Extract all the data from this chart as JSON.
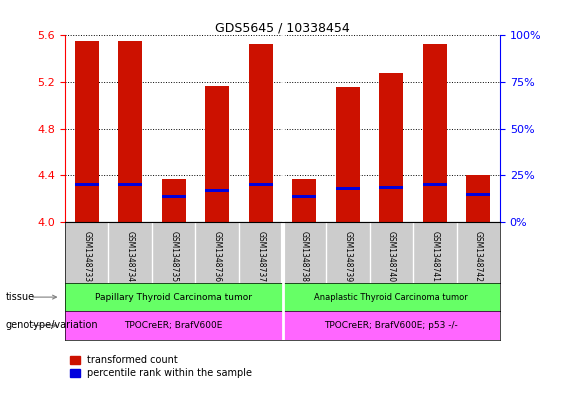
{
  "title": "GDS5645 / 10338454",
  "samples": [
    "GSM1348733",
    "GSM1348734",
    "GSM1348735",
    "GSM1348736",
    "GSM1348737",
    "GSM1348738",
    "GSM1348739",
    "GSM1348740",
    "GSM1348741",
    "GSM1348742"
  ],
  "bar_values": [
    5.55,
    5.55,
    4.37,
    5.17,
    5.53,
    4.37,
    5.16,
    5.28,
    5.53,
    4.4
  ],
  "blue_values": [
    4.32,
    4.32,
    4.22,
    4.27,
    4.32,
    4.22,
    4.29,
    4.3,
    4.32,
    4.24
  ],
  "ylim": [
    4.0,
    5.6
  ],
  "yticks_left": [
    4.0,
    4.4,
    4.8,
    5.2,
    5.6
  ],
  "yticks_right": [
    0,
    25,
    50,
    75,
    100
  ],
  "ytick_labels_right": [
    "0%",
    "25%",
    "50%",
    "75%",
    "100%"
  ],
  "bar_color": "#CC1100",
  "blue_color": "#0000DD",
  "bar_width": 0.55,
  "tissue_labels": [
    "Papillary Thyroid Carcinoma tumor",
    "Anaplastic Thyroid Carcinoma tumor"
  ],
  "tissue_split": 5,
  "genotype_labels": [
    "TPOCreER; BrafV600E",
    "TPOCreER; BrafV600E; p53 -/-"
  ],
  "tissue_color": "#66FF66",
  "genotype_color": "#FF66FF",
  "sample_bg_color": "#CCCCCC",
  "legend_red_label": "transformed count",
  "legend_blue_label": "percentile rank within the sample",
  "tissue_row_label": "tissue",
  "genotype_row_label": "genotype/variation"
}
